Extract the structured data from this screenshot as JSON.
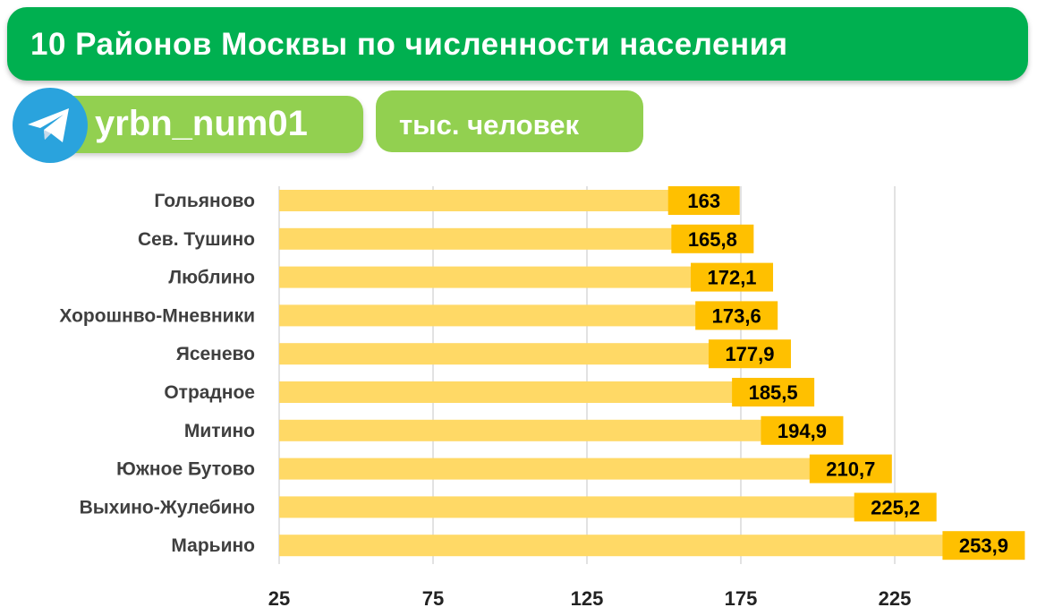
{
  "title": "10 Районов Москвы по численности населения",
  "channel": "yrbn_num01",
  "unit": "тыс. человек",
  "colors": {
    "title_bg": "#00b050",
    "pill_bg": "#92d050",
    "bar": "#ffd966",
    "label_box": "#ffc000",
    "telegram": "#2aa3dd"
  },
  "chart_data": {
    "type": "bar",
    "orientation": "horizontal",
    "categories": [
      "Гольяново",
      "Сев. Тушино",
      "Люблино",
      "Хорошнво-Мневники",
      "Ясенево",
      "Отрадное",
      "Митино",
      "Южное Бутово",
      "Выхино-Жулебино",
      "Марьино"
    ],
    "values": [
      163,
      165.8,
      172.1,
      173.6,
      177.9,
      185.5,
      194.9,
      210.7,
      225.2,
      253.9
    ],
    "value_labels": [
      "163",
      "165,8",
      "172,1",
      "173,6",
      "177,9",
      "185,5",
      "194,9",
      "210,7",
      "225,2",
      "253,9"
    ],
    "xticks": [
      25,
      75,
      125,
      175,
      225
    ],
    "xlim": [
      25,
      275
    ],
    "grid": true,
    "title": "",
    "xlabel": "",
    "ylabel": ""
  }
}
